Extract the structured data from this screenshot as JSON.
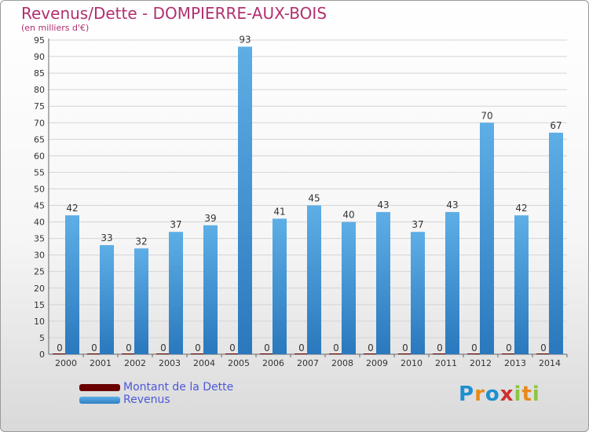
{
  "header": {
    "title": "Revenus/Dette - DOMPIERRE-AUX-BOIS",
    "subtitle": "(en milliers d'€)"
  },
  "chart_data": {
    "type": "bar",
    "title": "Revenus/Dette - DOMPIERRE-AUX-BOIS",
    "subtitle": "(en milliers d'€)",
    "categories": [
      "2000",
      "2001",
      "2002",
      "2003",
      "2004",
      "2005",
      "2006",
      "2007",
      "2008",
      "2009",
      "2010",
      "2011",
      "2012",
      "2013",
      "2014"
    ],
    "series": [
      {
        "name": "Montant de la Dette",
        "color": "#6b0000",
        "values": [
          0,
          0,
          0,
          0,
          0,
          0,
          0,
          0,
          0,
          0,
          0,
          0,
          0,
          0,
          0
        ]
      },
      {
        "name": "Revenus",
        "color": "#3a90d8",
        "values": [
          42,
          33,
          32,
          37,
          39,
          93,
          41,
          45,
          40,
          43,
          37,
          43,
          70,
          42,
          67
        ]
      }
    ],
    "ylim": [
      0,
      95
    ],
    "yticks": [
      0,
      5,
      10,
      15,
      20,
      25,
      30,
      35,
      40,
      45,
      50,
      55,
      60,
      65,
      70,
      75,
      80,
      85,
      90,
      95
    ],
    "grid": true,
    "legend": "bottom-left"
  },
  "legend": {
    "items": [
      {
        "label": "Montant de la Dette",
        "color": "#6b0000"
      },
      {
        "label": "Revenus",
        "color": "#3a90d8"
      }
    ]
  },
  "logo": {
    "text": "Proxiti",
    "letters": [
      "P",
      "r",
      "o",
      "x",
      "i",
      "t",
      "i"
    ],
    "colors": [
      "#1f8fd0",
      "#e88a1a",
      "#1f8fd0",
      "#d03030",
      "#8cc63f",
      "#e88a1a",
      "#8cc63f"
    ]
  }
}
